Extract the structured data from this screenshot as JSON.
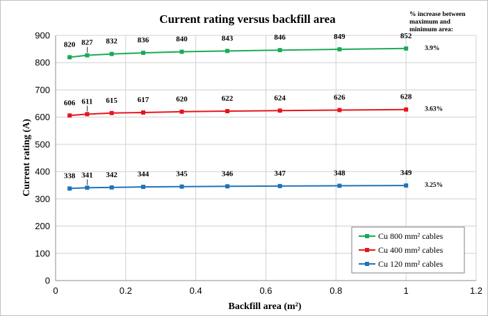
{
  "chart_data": {
    "type": "line",
    "title": "Current rating versus backfill area",
    "xlabel": "Backfill area (m²)",
    "ylabel": "Current rating (A)",
    "xlim": [
      0,
      1.2
    ],
    "ylim": [
      0,
      900
    ],
    "x_ticks": [
      0,
      0.2,
      0.4,
      0.6,
      0.8,
      1,
      1.2
    ],
    "y_ticks": [
      0,
      100,
      200,
      300,
      400,
      500,
      600,
      700,
      800,
      900
    ],
    "x": [
      0.04,
      0.09,
      0.16,
      0.25,
      0.36,
      0.49,
      0.64,
      0.81,
      1.0
    ],
    "grid": true,
    "legend_position": "bottom-right",
    "series": [
      {
        "name": "Cu 800 mm² cables",
        "color": "#1aaa55",
        "values": [
          820,
          827,
          832,
          836,
          840,
          843,
          846,
          849,
          852
        ],
        "increase": "3.9%"
      },
      {
        "name": "Cu 400 mm² cables",
        "color": "#e8141b",
        "values": [
          606,
          611,
          615,
          617,
          620,
          622,
          624,
          626,
          628
        ],
        "increase": "3.63%"
      },
      {
        "name": "Cu 120 mm² cables",
        "color": "#1f72b8",
        "values": [
          338,
          341,
          342,
          344,
          345,
          346,
          347,
          348,
          349
        ],
        "increase": "3.25%"
      }
    ],
    "annotation_lines": [
      "% increase between",
      "maximum and",
      "minimum area:"
    ]
  }
}
